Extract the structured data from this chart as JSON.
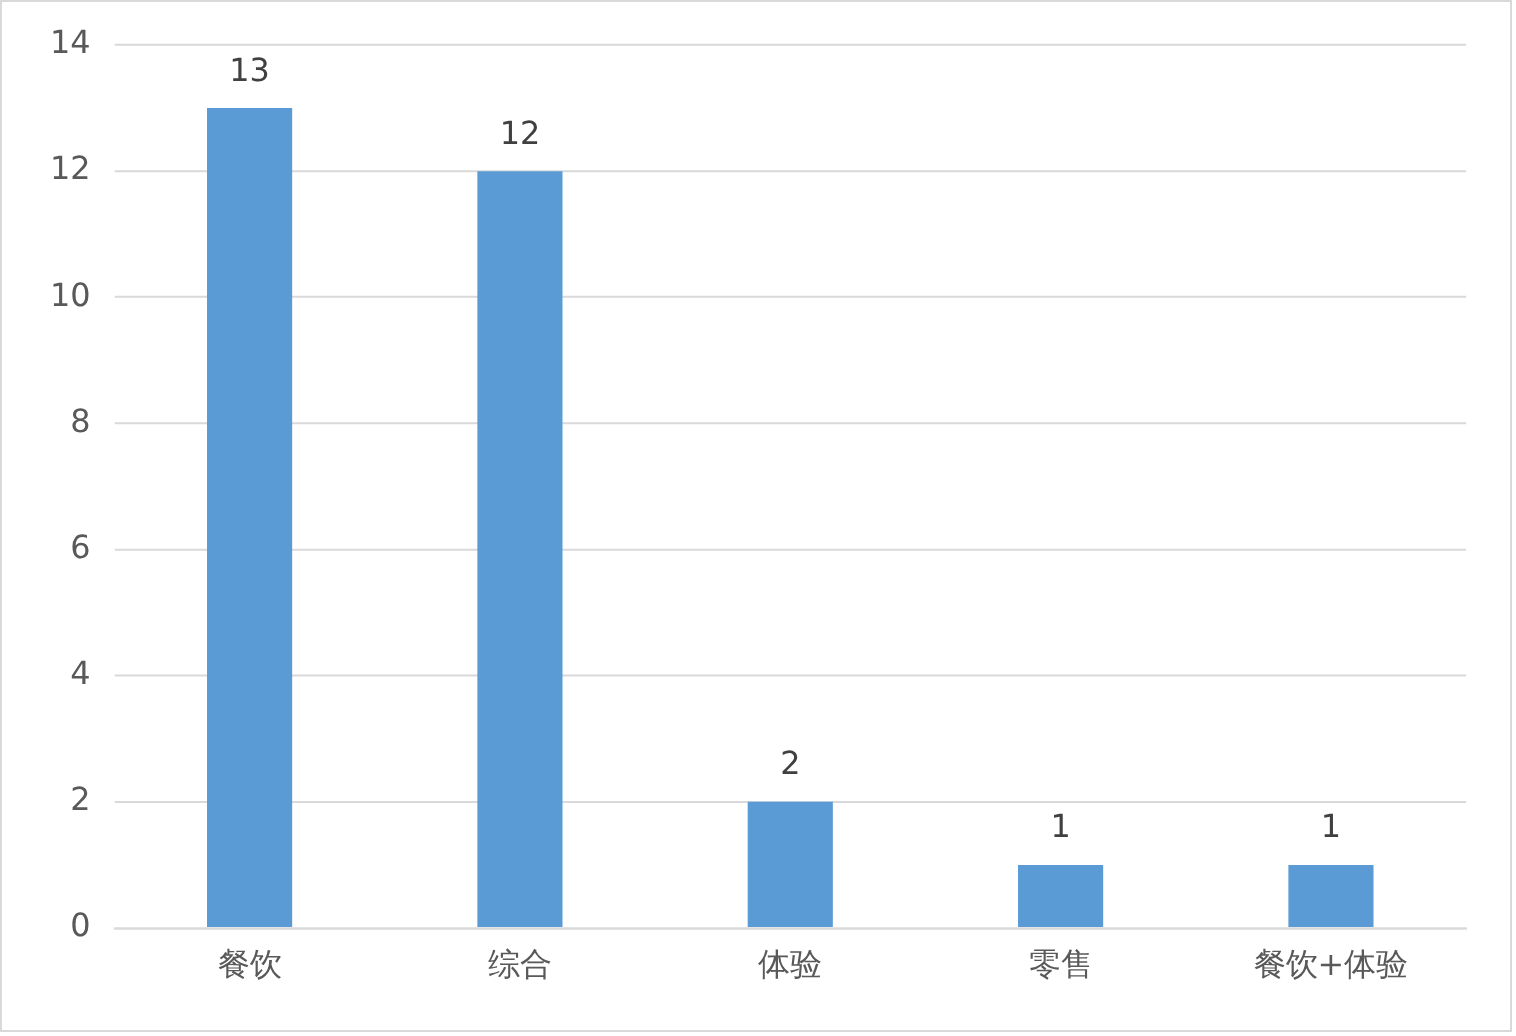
{
  "chart_data": {
    "type": "bar",
    "categories": [
      "餐饮",
      "综合",
      "体验",
      "零售",
      "餐饮+体验"
    ],
    "values": [
      13,
      12,
      2,
      1,
      1
    ],
    "color": "#5b9bd5",
    "ylim": [
      0,
      14
    ],
    "yticks": [
      0,
      2,
      4,
      6,
      8,
      10,
      12,
      14
    ],
    "grid": "y",
    "data_labels": true,
    "legend": false
  }
}
